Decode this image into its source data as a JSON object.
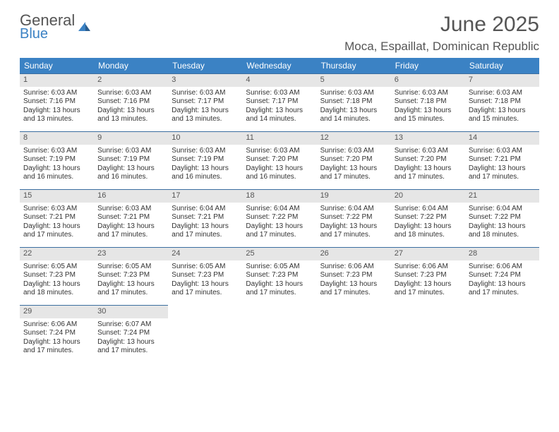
{
  "logo": {
    "word1": "General",
    "word2": "Blue"
  },
  "title": "June 2025",
  "location": "Moca, Espaillat, Dominican Republic",
  "colors": {
    "header_bg": "#3b82c4",
    "header_text": "#ffffff",
    "daynum_bg": "#e6e6e6",
    "rule": "#3b6ea0",
    "logo_blue": "#3b82c4"
  },
  "day_headers": [
    "Sunday",
    "Monday",
    "Tuesday",
    "Wednesday",
    "Thursday",
    "Friday",
    "Saturday"
  ],
  "weeks": [
    [
      {
        "n": "1",
        "sr": "6:03 AM",
        "ss": "7:16 PM",
        "dl": "13 hours and 13 minutes."
      },
      {
        "n": "2",
        "sr": "6:03 AM",
        "ss": "7:16 PM",
        "dl": "13 hours and 13 minutes."
      },
      {
        "n": "3",
        "sr": "6:03 AM",
        "ss": "7:17 PM",
        "dl": "13 hours and 13 minutes."
      },
      {
        "n": "4",
        "sr": "6:03 AM",
        "ss": "7:17 PM",
        "dl": "13 hours and 14 minutes."
      },
      {
        "n": "5",
        "sr": "6:03 AM",
        "ss": "7:18 PM",
        "dl": "13 hours and 14 minutes."
      },
      {
        "n": "6",
        "sr": "6:03 AM",
        "ss": "7:18 PM",
        "dl": "13 hours and 15 minutes."
      },
      {
        "n": "7",
        "sr": "6:03 AM",
        "ss": "7:18 PM",
        "dl": "13 hours and 15 minutes."
      }
    ],
    [
      {
        "n": "8",
        "sr": "6:03 AM",
        "ss": "7:19 PM",
        "dl": "13 hours and 16 minutes."
      },
      {
        "n": "9",
        "sr": "6:03 AM",
        "ss": "7:19 PM",
        "dl": "13 hours and 16 minutes."
      },
      {
        "n": "10",
        "sr": "6:03 AM",
        "ss": "7:19 PM",
        "dl": "13 hours and 16 minutes."
      },
      {
        "n": "11",
        "sr": "6:03 AM",
        "ss": "7:20 PM",
        "dl": "13 hours and 16 minutes."
      },
      {
        "n": "12",
        "sr": "6:03 AM",
        "ss": "7:20 PM",
        "dl": "13 hours and 17 minutes."
      },
      {
        "n": "13",
        "sr": "6:03 AM",
        "ss": "7:20 PM",
        "dl": "13 hours and 17 minutes."
      },
      {
        "n": "14",
        "sr": "6:03 AM",
        "ss": "7:21 PM",
        "dl": "13 hours and 17 minutes."
      }
    ],
    [
      {
        "n": "15",
        "sr": "6:03 AM",
        "ss": "7:21 PM",
        "dl": "13 hours and 17 minutes."
      },
      {
        "n": "16",
        "sr": "6:03 AM",
        "ss": "7:21 PM",
        "dl": "13 hours and 17 minutes."
      },
      {
        "n": "17",
        "sr": "6:04 AM",
        "ss": "7:21 PM",
        "dl": "13 hours and 17 minutes."
      },
      {
        "n": "18",
        "sr": "6:04 AM",
        "ss": "7:22 PM",
        "dl": "13 hours and 17 minutes."
      },
      {
        "n": "19",
        "sr": "6:04 AM",
        "ss": "7:22 PM",
        "dl": "13 hours and 17 minutes."
      },
      {
        "n": "20",
        "sr": "6:04 AM",
        "ss": "7:22 PM",
        "dl": "13 hours and 18 minutes."
      },
      {
        "n": "21",
        "sr": "6:04 AM",
        "ss": "7:22 PM",
        "dl": "13 hours and 18 minutes."
      }
    ],
    [
      {
        "n": "22",
        "sr": "6:05 AM",
        "ss": "7:23 PM",
        "dl": "13 hours and 18 minutes."
      },
      {
        "n": "23",
        "sr": "6:05 AM",
        "ss": "7:23 PM",
        "dl": "13 hours and 17 minutes."
      },
      {
        "n": "24",
        "sr": "6:05 AM",
        "ss": "7:23 PM",
        "dl": "13 hours and 17 minutes."
      },
      {
        "n": "25",
        "sr": "6:05 AM",
        "ss": "7:23 PM",
        "dl": "13 hours and 17 minutes."
      },
      {
        "n": "26",
        "sr": "6:06 AM",
        "ss": "7:23 PM",
        "dl": "13 hours and 17 minutes."
      },
      {
        "n": "27",
        "sr": "6:06 AM",
        "ss": "7:23 PM",
        "dl": "13 hours and 17 minutes."
      },
      {
        "n": "28",
        "sr": "6:06 AM",
        "ss": "7:24 PM",
        "dl": "13 hours and 17 minutes."
      }
    ],
    [
      {
        "n": "29",
        "sr": "6:06 AM",
        "ss": "7:24 PM",
        "dl": "13 hours and 17 minutes."
      },
      {
        "n": "30",
        "sr": "6:07 AM",
        "ss": "7:24 PM",
        "dl": "13 hours and 17 minutes."
      },
      null,
      null,
      null,
      null,
      null
    ]
  ],
  "labels": {
    "sunrise": "Sunrise:",
    "sunset": "Sunset:",
    "daylight": "Daylight:"
  }
}
